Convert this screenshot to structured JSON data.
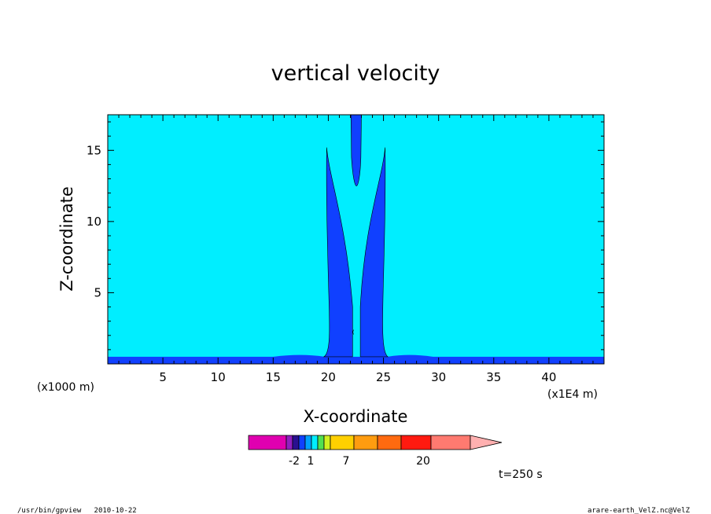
{
  "chart_data": {
    "type": "heatmap",
    "title": "vertical velocity",
    "xlabel": "X-coordinate",
    "ylabel": "Z-coordinate",
    "x_unit_left": "(x1000 m)",
    "x_unit_right": "(x1E4 m)",
    "xlim": [
      0,
      45
    ],
    "ylim": [
      0,
      17.5
    ],
    "x_ticks": [
      "5",
      "10",
      "15",
      "20",
      "25",
      "30",
      "35",
      "40"
    ],
    "y_ticks": [
      "5",
      "10",
      "15"
    ],
    "time_label": "t=250 s",
    "background_level_color": "#00eeff",
    "contour_fill_color": "#1040ff",
    "features": [
      {
        "name": "left tower",
        "x_range": [
          19.8,
          22.2
        ],
        "z_top": 15.2
      },
      {
        "name": "right tower",
        "x_range": [
          22.9,
          25.2
        ],
        "z_top": 15.2
      },
      {
        "name": "upper plume",
        "x_range": [
          22.1,
          23.0
        ],
        "z_bottom": 12.5
      },
      {
        "name": "ground layer",
        "z_top": 0.5
      }
    ],
    "colorbar": {
      "colors": [
        "#e000b0",
        "#9020c0",
        "#2a1090",
        "#1040ff",
        "#00a0ff",
        "#00eeff",
        "#50e050",
        "#d0f020",
        "#ffd000",
        "#ff9c10",
        "#ff6a10",
        "#ff1a10",
        "#ff7a70",
        "#ffb0b0"
      ],
      "tick_labels": [
        "-2",
        "1",
        "7",
        "20"
      ]
    }
  },
  "footer": {
    "left": "/usr/bin/gpview   2010-10-22",
    "right": "arare-earth_VelZ.nc@VelZ"
  }
}
